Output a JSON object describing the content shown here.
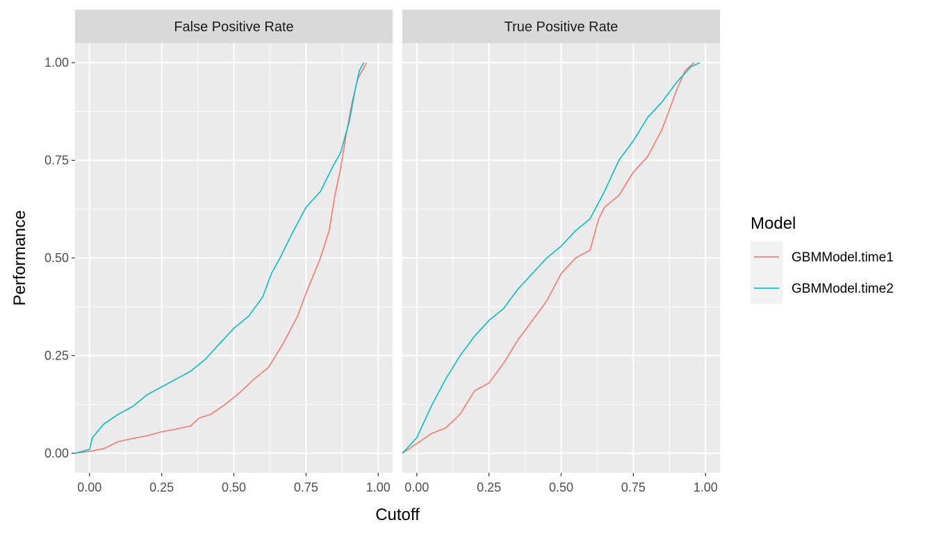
{
  "chart_data": {
    "type": "line",
    "title": "",
    "xlabel": "Cutoff",
    "ylabel": "Performance",
    "xlim": [
      -0.05,
      1.05
    ],
    "ylim": [
      -0.05,
      1.05
    ],
    "x_ticks": [
      0,
      0.25,
      0.5,
      0.75,
      1
    ],
    "x_tick_labels": [
      "0.00",
      "0.25",
      "0.50",
      "0.75",
      "1.00"
    ],
    "y_ticks": [
      0,
      0.25,
      0.5,
      0.75,
      1
    ],
    "y_tick_labels": [
      "0.00",
      "0.25",
      "0.50",
      "0.75",
      "1.00"
    ],
    "grid": true,
    "legend": {
      "title": "Model",
      "position": "right"
    },
    "series_colors": {
      "GBMModel.time1": "#F8766D",
      "GBMModel.time2": "#00BFC4"
    },
    "panels": [
      {
        "strip_label": "False Positive Rate",
        "series": [
          {
            "name": "GBMModel.time1",
            "color": "#F8766D",
            "points": [
              [
                -0.05,
                0
              ],
              [
                0,
                0.005
              ],
              [
                0.05,
                0.012
              ],
              [
                0.1,
                0.03
              ],
              [
                0.15,
                0.038
              ],
              [
                0.2,
                0.045
              ],
              [
                0.25,
                0.055
              ],
              [
                0.3,
                0.062
              ],
              [
                0.35,
                0.07
              ],
              [
                0.38,
                0.09
              ],
              [
                0.42,
                0.1
              ],
              [
                0.47,
                0.125
              ],
              [
                0.52,
                0.155
              ],
              [
                0.57,
                0.19
              ],
              [
                0.62,
                0.22
              ],
              [
                0.67,
                0.28
              ],
              [
                0.72,
                0.35
              ],
              [
                0.75,
                0.41
              ],
              [
                0.8,
                0.5
              ],
              [
                0.83,
                0.57
              ],
              [
                0.85,
                0.66
              ],
              [
                0.87,
                0.73
              ],
              [
                0.89,
                0.82
              ],
              [
                0.91,
                0.9
              ],
              [
                0.93,
                0.96
              ],
              [
                0.96,
                1.0
              ]
            ]
          },
          {
            "name": "GBMModel.time2",
            "color": "#00BFC4",
            "points": [
              [
                -0.05,
                0
              ],
              [
                0,
                0.01
              ],
              [
                0.01,
                0.04
              ],
              [
                0.05,
                0.075
              ],
              [
                0.1,
                0.1
              ],
              [
                0.15,
                0.12
              ],
              [
                0.2,
                0.15
              ],
              [
                0.25,
                0.17
              ],
              [
                0.3,
                0.19
              ],
              [
                0.35,
                0.21
              ],
              [
                0.4,
                0.24
              ],
              [
                0.45,
                0.28
              ],
              [
                0.5,
                0.32
              ],
              [
                0.55,
                0.35
              ],
              [
                0.6,
                0.4
              ],
              [
                0.63,
                0.46
              ],
              [
                0.66,
                0.5
              ],
              [
                0.7,
                0.56
              ],
              [
                0.75,
                0.63
              ],
              [
                0.8,
                0.67
              ],
              [
                0.84,
                0.73
              ],
              [
                0.87,
                0.77
              ],
              [
                0.9,
                0.85
              ],
              [
                0.92,
                0.93
              ],
              [
                0.935,
                0.98
              ],
              [
                0.95,
                1.0
              ]
            ]
          }
        ]
      },
      {
        "strip_label": "True Positive Rate",
        "series": [
          {
            "name": "GBMModel.time1",
            "color": "#F8766D",
            "points": [
              [
                -0.05,
                0
              ],
              [
                0,
                0.025
              ],
              [
                0.05,
                0.05
              ],
              [
                0.1,
                0.065
              ],
              [
                0.15,
                0.1
              ],
              [
                0.2,
                0.16
              ],
              [
                0.25,
                0.18
              ],
              [
                0.3,
                0.23
              ],
              [
                0.35,
                0.29
              ],
              [
                0.4,
                0.34
              ],
              [
                0.45,
                0.39
              ],
              [
                0.5,
                0.46
              ],
              [
                0.55,
                0.5
              ],
              [
                0.6,
                0.52
              ],
              [
                0.63,
                0.6
              ],
              [
                0.65,
                0.63
              ],
              [
                0.7,
                0.66
              ],
              [
                0.75,
                0.72
              ],
              [
                0.8,
                0.76
              ],
              [
                0.85,
                0.83
              ],
              [
                0.88,
                0.89
              ],
              [
                0.9,
                0.93
              ],
              [
                0.93,
                0.98
              ],
              [
                0.96,
                1.0
              ]
            ]
          },
          {
            "name": "GBMModel.time2",
            "color": "#00BFC4",
            "points": [
              [
                -0.05,
                0
              ],
              [
                0,
                0.04
              ],
              [
                0.05,
                0.12
              ],
              [
                0.1,
                0.19
              ],
              [
                0.15,
                0.25
              ],
              [
                0.2,
                0.3
              ],
              [
                0.25,
                0.34
              ],
              [
                0.3,
                0.37
              ],
              [
                0.35,
                0.42
              ],
              [
                0.4,
                0.46
              ],
              [
                0.45,
                0.5
              ],
              [
                0.5,
                0.53
              ],
              [
                0.55,
                0.57
              ],
              [
                0.6,
                0.6
              ],
              [
                0.65,
                0.67
              ],
              [
                0.7,
                0.75
              ],
              [
                0.75,
                0.8
              ],
              [
                0.8,
                0.86
              ],
              [
                0.85,
                0.9
              ],
              [
                0.9,
                0.95
              ],
              [
                0.95,
                0.99
              ],
              [
                0.98,
                1.0
              ]
            ]
          }
        ]
      }
    ]
  }
}
